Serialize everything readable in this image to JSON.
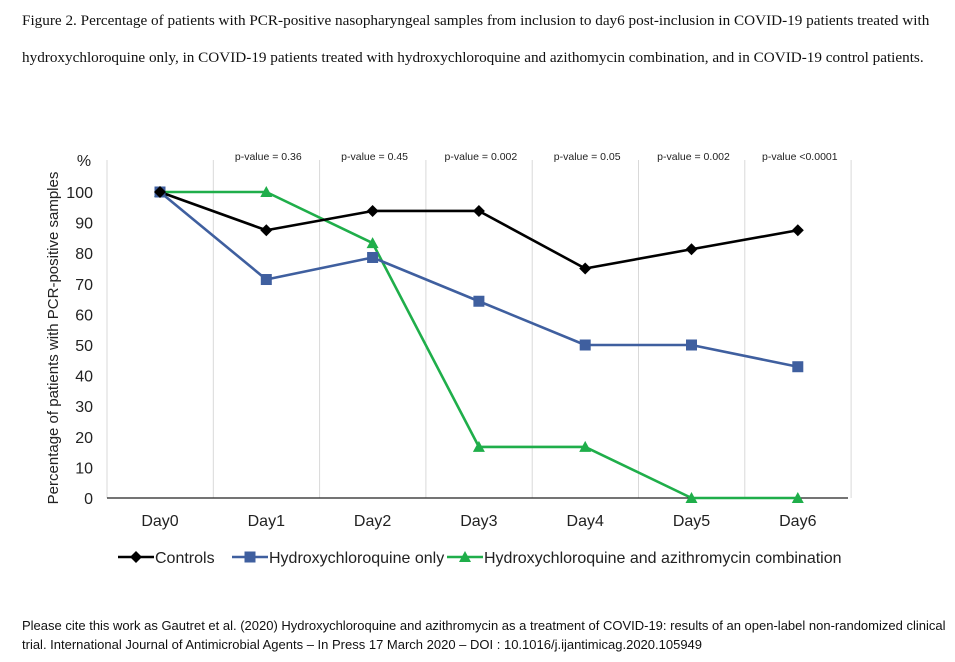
{
  "caption": "Figure 2. Percentage of patients with PCR-positive nasopharyngeal samples from inclusion to day6 post-inclusion in COVID-19 patients treated with hydroxychloroquine only, in COVID-19 patients treated with hydroxychloroquine and azithomycin combination, and in COVID-19 control patients.",
  "citation": "Please cite this work as Gautret et al. (2020) Hydroxychloroquine and azithromycin as a treatment of COVID-19: results of an open-label non-randomized clinical trial. International Journal of Antimicrobial Agents – In Press 17 March 2020 – DOI : 10.1016/j.ijantimicag.2020.105949",
  "chart_data": {
    "type": "line",
    "ylabel": "Percentage of patients with PCR-positive samples",
    "yunit": "%",
    "ylim": [
      0,
      100
    ],
    "yticks": [
      0,
      10,
      20,
      30,
      40,
      50,
      60,
      70,
      80,
      90,
      100
    ],
    "categories": [
      "Day0",
      "Day1",
      "Day2",
      "Day3",
      "Day4",
      "Day5",
      "Day6"
    ],
    "pvalues": [
      "p-value = 0.36",
      "p-value = 0.45",
      "p-value = 0.002",
      "p-value = 0.05",
      "p-value = 0.002",
      "p-value <0.0001"
    ],
    "grid": "vertical",
    "legend_position": "bottom",
    "series": [
      {
        "name": "Controls",
        "marker": "diamond",
        "color": "#000000",
        "values": [
          100,
          87.5,
          93.8,
          93.8,
          75,
          81.3,
          87.5
        ]
      },
      {
        "name": "Hydroxychloroquine only",
        "marker": "square",
        "color": "#3f5f9f",
        "values": [
          100,
          71.4,
          78.6,
          64.3,
          50,
          50,
          42.9
        ]
      },
      {
        "name": "Hydroxychloroquine and azithromycin combination",
        "marker": "triangle",
        "color": "#1fae4a",
        "values": [
          100,
          100,
          83.3,
          16.7,
          16.7,
          0,
          0
        ]
      }
    ]
  }
}
